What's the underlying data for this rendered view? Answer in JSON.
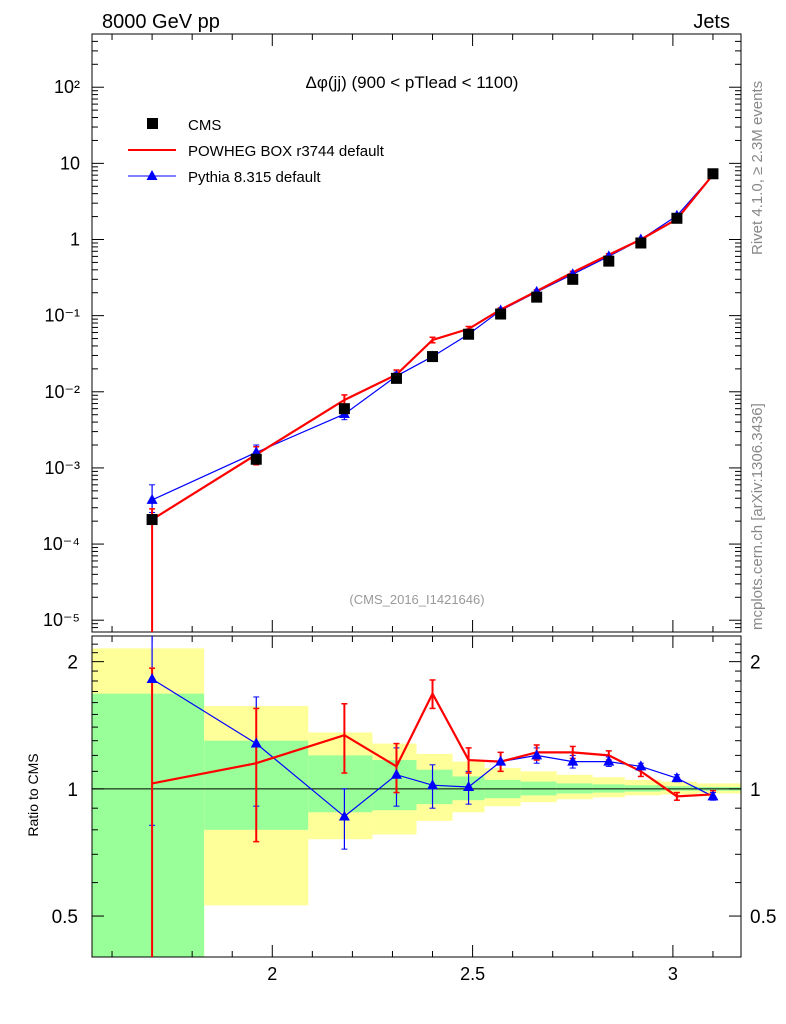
{
  "header": {
    "left": "8000 GeV pp",
    "right": "Jets"
  },
  "side_labels": {
    "rivet": "Rivet 4.1.0, ≥ 2.3M events",
    "mcplots": "mcplots.cern.ch [arXiv:1306.3436]"
  },
  "chart_data": {
    "type": "line",
    "title": "Δφ(jj) (900 < pTlead <  1100)",
    "watermark": "(CMS_2016_I1421646)",
    "xlabel": "",
    "ylabel": "",
    "ratio_ylabel": "Ratio to CMS",
    "xlim": [
      1.55,
      3.17
    ],
    "ylim": [
      7e-06,
      500
    ],
    "yscale": "log",
    "ratio_ylim": [
      0.4,
      2.3
    ],
    "xticks": [
      2,
      2.5,
      3
    ],
    "xtick_labels": [
      "2",
      "2.5",
      "3"
    ],
    "main_ytick_labels": [
      "10⁻⁵",
      "10⁻⁴",
      "10⁻³",
      "10⁻²",
      "10⁻¹",
      "1",
      "10",
      "10²"
    ],
    "ratio_yticks": [
      0.5,
      1,
      2
    ],
    "ratio_ytick_labels": [
      "0.5",
      "1",
      "2"
    ],
    "legend": [
      "CMS",
      "POWHEG BOX r3744 default",
      "Pythia 8.315 default"
    ],
    "legend_placement": "top-left",
    "colors": {
      "data": "#000000",
      "powheg": "#ff0000",
      "pythia": "#0000ff",
      "band_inner": "#99ff99",
      "band_outer": "#ffff99"
    },
    "x": [
      1.7,
      1.96,
      2.18,
      2.31,
      2.4,
      2.49,
      2.57,
      2.66,
      2.75,
      2.84,
      2.92,
      3.01,
      3.1
    ],
    "series": [
      {
        "name": "CMS",
        "values": [
          0.00021,
          0.0013,
          0.006,
          0.015,
          0.029,
          0.057,
          0.105,
          0.175,
          0.3,
          0.52,
          0.9,
          1.9,
          7.3
        ]
      },
      {
        "name": "POWHEG BOX r3744 default",
        "values": [
          0.00021,
          0.0015,
          0.0078,
          0.0168,
          0.048,
          0.067,
          0.12,
          0.21,
          0.37,
          0.63,
          1.0,
          1.85,
          7.1
        ],
        "err_lo": [
          0.000205,
          0.0004,
          0.0013,
          0.0025,
          0.004,
          0.005,
          0.006,
          0.008,
          0.012,
          0.02,
          0.03,
          0.05,
          0.1
        ],
        "err_hi": [
          8e-05,
          0.0004,
          0.0013,
          0.0025,
          0.004,
          0.005,
          0.006,
          0.008,
          0.012,
          0.02,
          0.03,
          0.05,
          0.1
        ]
      },
      {
        "name": "Pythia 8.315 default",
        "values": [
          0.00038,
          0.0016,
          0.0051,
          0.0161,
          0.029,
          0.057,
          0.117,
          0.205,
          0.35,
          0.6,
          1.0,
          2.05,
          7.05
        ],
        "err_lo": [
          0.00012,
          0.0004,
          0.0008,
          0.002,
          0.003,
          0.004,
          0.005,
          0.006,
          0.01,
          0.015,
          0.02,
          0.04,
          0.1
        ],
        "err_hi": [
          0.00022,
          0.0004,
          0.0008,
          0.002,
          0.003,
          0.004,
          0.005,
          0.006,
          0.01,
          0.015,
          0.02,
          0.04,
          0.1
        ]
      }
    ],
    "ratio": {
      "powheg": {
        "values": [
          1.03,
          1.15,
          1.34,
          1.13,
          1.68,
          1.17,
          1.16,
          1.22,
          1.22,
          1.2,
          1.1,
          0.96,
          0.97
        ],
        "err_lo": [
          0.9,
          0.4,
          0.25,
          0.15,
          0.13,
          0.08,
          0.06,
          0.05,
          0.04,
          0.03,
          0.03,
          0.02,
          0.02
        ],
        "err_hi": [
          0.9,
          0.4,
          0.25,
          0.15,
          0.13,
          0.08,
          0.06,
          0.05,
          0.04,
          0.03,
          0.03,
          0.02,
          0.02
        ]
      },
      "pythia": {
        "values": [
          1.82,
          1.28,
          0.86,
          1.08,
          1.02,
          1.01,
          1.16,
          1.2,
          1.16,
          1.16,
          1.13,
          1.06,
          0.96
        ],
        "err_lo": [
          1.0,
          0.37,
          0.14,
          0.17,
          0.12,
          0.09,
          0.06,
          0.05,
          0.04,
          0.03,
          0.02,
          0.02,
          0.02
        ],
        "err_hi": [
          0.55,
          0.37,
          0.14,
          0.17,
          0.12,
          0.09,
          0.06,
          0.05,
          0.04,
          0.03,
          0.02,
          0.02,
          0.02
        ]
      }
    },
    "bands": [
      {
        "x0": 1.55,
        "x1": 1.83,
        "outer": [
          0.3,
          2.15
        ],
        "inner": [
          0.3,
          1.68
        ]
      },
      {
        "x0": 1.83,
        "x1": 2.09,
        "outer": [
          0.53,
          1.57
        ],
        "inner": [
          0.8,
          1.3
        ]
      },
      {
        "x0": 2.09,
        "x1": 2.25,
        "outer": [
          0.76,
          1.36
        ],
        "inner": [
          0.88,
          1.2
        ]
      },
      {
        "x0": 2.25,
        "x1": 2.36,
        "outer": [
          0.78,
          1.28
        ],
        "inner": [
          0.89,
          1.17
        ]
      },
      {
        "x0": 2.36,
        "x1": 2.45,
        "outer": [
          0.84,
          1.21
        ],
        "inner": [
          0.92,
          1.11
        ]
      },
      {
        "x0": 2.45,
        "x1": 2.53,
        "outer": [
          0.88,
          1.16
        ],
        "inner": [
          0.94,
          1.07
        ]
      },
      {
        "x0": 2.53,
        "x1": 2.62,
        "outer": [
          0.91,
          1.12
        ],
        "inner": [
          0.95,
          1.05
        ]
      },
      {
        "x0": 2.62,
        "x1": 2.71,
        "outer": [
          0.93,
          1.1
        ],
        "inner": [
          0.965,
          1.04
        ]
      },
      {
        "x0": 2.71,
        "x1": 2.8,
        "outer": [
          0.945,
          1.08
        ],
        "inner": [
          0.975,
          1.03
        ]
      },
      {
        "x0": 2.8,
        "x1": 2.88,
        "outer": [
          0.955,
          1.065
        ],
        "inner": [
          0.98,
          1.025
        ]
      },
      {
        "x0": 2.88,
        "x1": 2.97,
        "outer": [
          0.965,
          1.05
        ],
        "inner": [
          0.985,
          1.02
        ]
      },
      {
        "x0": 2.97,
        "x1": 3.06,
        "outer": [
          0.97,
          1.04
        ],
        "inner": [
          0.99,
          1.015
        ]
      },
      {
        "x0": 3.06,
        "x1": 3.17,
        "outer": [
          0.975,
          1.03
        ],
        "inner": [
          0.99,
          1.01
        ]
      }
    ]
  }
}
